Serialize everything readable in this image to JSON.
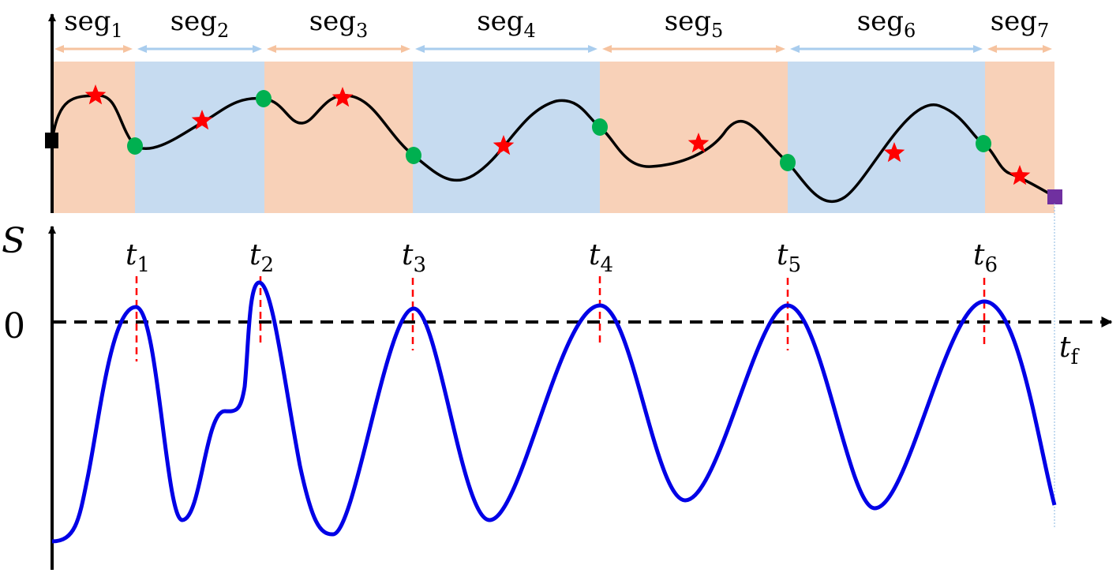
{
  "colors": {
    "orange_band": "#f8d1b8",
    "blue_band": "#c6dbf0",
    "orange_arrow": "#f6c39f",
    "blue_arrow": "#a9cdee",
    "trajectory": "#000000",
    "switch_point": "#00b050",
    "star": "#ff0000",
    "start_marker": "#000000",
    "end_marker": "#7030a0",
    "switching_function": "#0000e6",
    "switch_time_line": "#ff0000",
    "final_time_line": "#9dc3e6"
  },
  "top_panel": {
    "segments": [
      {
        "base": "seg",
        "sub": "1"
      },
      {
        "base": "seg",
        "sub": "2"
      },
      {
        "base": "seg",
        "sub": "3"
      },
      {
        "base": "seg",
        "sub": "4"
      },
      {
        "base": "seg",
        "sub": "5"
      },
      {
        "base": "seg",
        "sub": "6"
      },
      {
        "base": "seg",
        "sub": "7"
      }
    ]
  },
  "bottom_panel": {
    "y_axis_label": "S",
    "zero_label": "0",
    "final_time": {
      "base": "t",
      "sub": "f"
    },
    "switch_times": [
      {
        "base": "t",
        "sub": "1"
      },
      {
        "base": "t",
        "sub": "2"
      },
      {
        "base": "t",
        "sub": "3"
      },
      {
        "base": "t",
        "sub": "4"
      },
      {
        "base": "t",
        "sub": "5"
      },
      {
        "base": "t",
        "sub": "6"
      }
    ]
  }
}
